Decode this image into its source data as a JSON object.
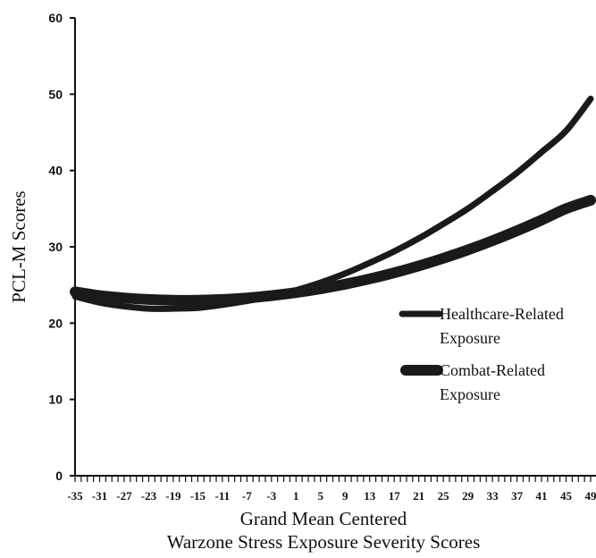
{
  "chart_data": {
    "type": "line",
    "title": "",
    "xlabel_line1": "Grand Mean Centered",
    "xlabel_line2": "Warzone Stress Exposure Severity Scores",
    "ylabel": "PCL-M Scores",
    "ylim": [
      0,
      60
    ],
    "yticks": [
      0,
      10,
      20,
      30,
      40,
      50,
      60
    ],
    "xlim": [
      -35,
      49
    ],
    "xtick_labels": [
      -35,
      -31,
      -27,
      -23,
      -19,
      -15,
      -11,
      -7,
      -3,
      1,
      5,
      9,
      13,
      17,
      21,
      25,
      29,
      33,
      37,
      41,
      45,
      49
    ],
    "grid": false,
    "legend_position": "right",
    "series": [
      {
        "name_line1": "Healthcare-Related",
        "name_line2": "Exposure",
        "color": "#1a1a1a",
        "x": [
          -35,
          -31,
          -27,
          -23,
          -19,
          -15,
          -11,
          -7,
          -3,
          1,
          5,
          9,
          13,
          17,
          21,
          25,
          29,
          33,
          37,
          41,
          45,
          49
        ],
        "values": [
          23.5,
          22.7,
          22.2,
          21.9,
          21.9,
          22.0,
          22.4,
          22.9,
          23.5,
          24.3,
          25.3,
          26.5,
          27.9,
          29.4,
          31.1,
          33.0,
          35.0,
          37.3,
          39.7,
          42.4,
          45.2,
          49.4
        ]
      },
      {
        "name_line1": "Combat-Related",
        "name_line2": "Exposure",
        "color": "#1a1a1a",
        "x": [
          -35,
          -31,
          -27,
          -23,
          -19,
          -15,
          -11,
          -7,
          -3,
          1,
          5,
          9,
          13,
          17,
          21,
          25,
          29,
          33,
          37,
          41,
          45,
          49
        ],
        "values": [
          24.1,
          23.6,
          23.3,
          23.1,
          23.0,
          23.0,
          23.1,
          23.3,
          23.6,
          24.0,
          24.5,
          25.1,
          25.8,
          26.6,
          27.5,
          28.5,
          29.6,
          30.8,
          32.1,
          33.5,
          35.0,
          36.1
        ]
      }
    ]
  }
}
